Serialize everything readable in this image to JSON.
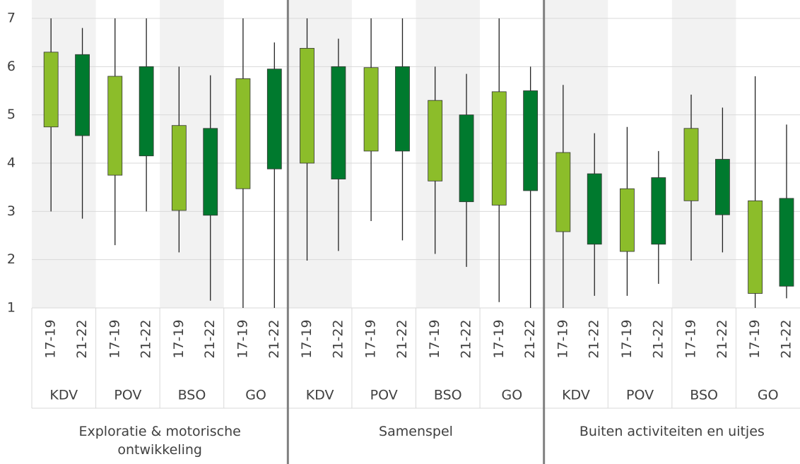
{
  "chart_data": {
    "type": "boxplot",
    "groups": [
      {
        "name": "Exploratie & motorische ontwikkeling",
        "categories": [
          "KDV",
          "POV",
          "BSO",
          "GO"
        ]
      },
      {
        "name": "Samenspel",
        "categories": [
          "KDV",
          "POV",
          "BSO",
          "GO"
        ]
      },
      {
        "name": "Buiten activiteiten en uitjes",
        "categories": [
          "KDV",
          "POV",
          "BSO",
          "GO"
        ]
      }
    ],
    "series": [
      {
        "name": "17-19",
        "color": "#8cbd2a",
        "min": [
          3.0,
          2.3,
          2.15,
          1.0,
          1.98,
          2.8,
          2.12,
          1.12,
          1.0,
          1.25,
          1.98,
          1.0
        ],
        "q1": [
          4.75,
          3.75,
          3.02,
          3.47,
          4.0,
          4.25,
          3.63,
          3.13,
          2.58,
          2.17,
          3.22,
          1.3
        ],
        "q3": [
          6.3,
          5.8,
          4.78,
          5.75,
          6.38,
          5.98,
          5.3,
          5.48,
          4.22,
          3.47,
          4.72,
          3.22
        ],
        "max": [
          7.0,
          7.0,
          6.0,
          7.0,
          7.0,
          7.0,
          6.0,
          7.0,
          5.62,
          4.75,
          5.42,
          5.8
        ]
      },
      {
        "name": "21-22",
        "color": "#007a2e",
        "min": [
          2.85,
          3.0,
          1.15,
          1.0,
          2.18,
          2.4,
          1.85,
          1.0,
          1.25,
          1.5,
          2.15,
          1.2
        ],
        "q1": [
          4.57,
          4.15,
          2.92,
          3.88,
          3.67,
          4.25,
          3.2,
          3.43,
          2.32,
          2.32,
          2.93,
          1.45
        ],
        "q3": [
          6.25,
          6.0,
          4.72,
          5.95,
          6.0,
          6.0,
          5.0,
          5.5,
          3.78,
          3.7,
          4.08,
          3.27
        ],
        "max": [
          6.8,
          7.0,
          5.82,
          6.5,
          6.58,
          7.0,
          5.85,
          6.0,
          4.62,
          4.25,
          5.15,
          4.8
        ]
      }
    ],
    "ylim": [
      1,
      7
    ],
    "yticks": [
      1,
      2,
      3,
      4,
      5,
      6,
      7
    ],
    "grid": true
  }
}
